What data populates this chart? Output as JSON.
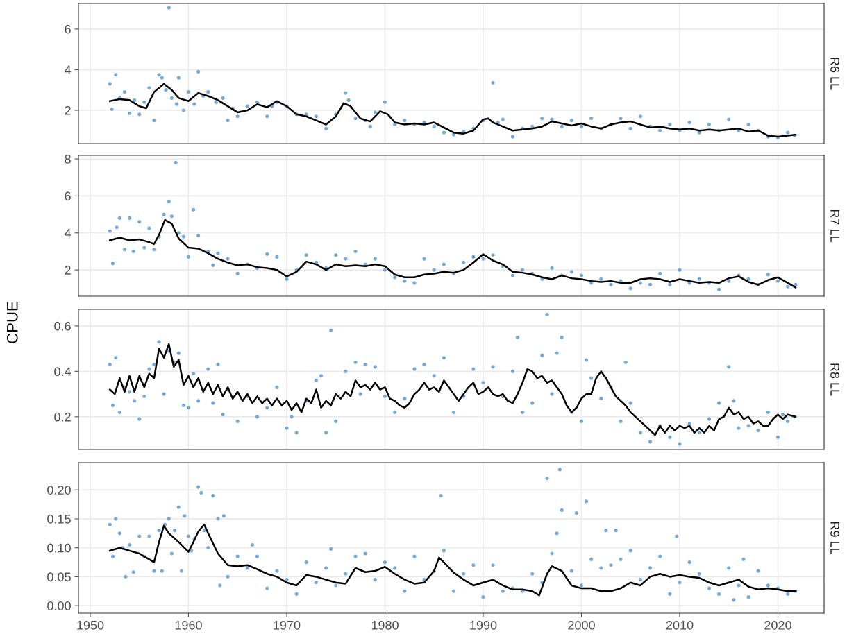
{
  "chart_data": [
    {
      "type": "scatter",
      "annotations": [
        "R6 LL"
      ],
      "xlim": [
        1948.8,
        2024.7
      ],
      "ylim": [
        0.36,
        7.26
      ],
      "xticks": [
        1950,
        1960,
        1970,
        1980,
        1990,
        2000,
        2010,
        2020
      ],
      "yticks": [
        2,
        4,
        6
      ],
      "grid": true,
      "legend": false,
      "tick_labels": "y",
      "series": [
        {
          "marker": "circle",
          "color": "#6aa5d8",
          "x": [
            1952,
            1952.2,
            1952.6,
            1953,
            1953.5,
            1954,
            1954.5,
            1955,
            1955.5,
            1956,
            1956.5,
            1957,
            1957.3,
            1957.7,
            1958,
            1958.3,
            1958.8,
            1959,
            1959.5,
            1960,
            1960.6,
            1961,
            1961.5,
            1962,
            1962.8,
            1963.5,
            1964,
            1964.5,
            1965,
            1966,
            1967,
            1968,
            1968.5,
            1969,
            1970,
            1971,
            1972,
            1973,
            1974,
            1975,
            1976,
            1976.3,
            1977,
            1978,
            1978.5,
            1979,
            1980,
            1981,
            1982,
            1983,
            1984,
            1985,
            1986,
            1987,
            1988,
            1989,
            1990,
            1991,
            1991.5,
            1992,
            1993,
            1994,
            1995,
            1996,
            1997,
            1998,
            1999,
            2000,
            2001,
            2002,
            2003,
            2004,
            2005,
            2006,
            2007,
            2008,
            2009,
            2010,
            2011,
            2012,
            2013,
            2014,
            2015,
            2016,
            2017,
            2018,
            2019,
            2020,
            2021,
            2021.7
          ],
          "values": [
            3.3,
            2.05,
            3.75,
            2.6,
            2.9,
            1.85,
            2.5,
            1.8,
            2.4,
            3.1,
            1.5,
            3.75,
            3.6,
            3.0,
            7.05,
            2.6,
            2.3,
            3.6,
            2.0,
            2.9,
            2.3,
            3.9,
            2.7,
            2.9,
            2.4,
            2.6,
            1.5,
            2.1,
            1.7,
            2.2,
            2.4,
            1.7,
            2.2,
            2.4,
            2.2,
            1.8,
            1.8,
            1.7,
            1.1,
            1.8,
            2.85,
            2.5,
            1.6,
            1.5,
            1.2,
            1.9,
            2.4,
            1.3,
            1.5,
            1.3,
            1.4,
            1.2,
            0.9,
            0.8,
            0.95,
            1.1,
            1.5,
            3.35,
            1.4,
            1.55,
            0.7,
            1.1,
            1.2,
            1.6,
            1.55,
            1.2,
            1.5,
            1.2,
            1.6,
            1.1,
            1.3,
            1.6,
            1.1,
            1.7,
            1.2,
            1.0,
            1.3,
            1.0,
            1.4,
            0.9,
            1.3,
            1.0,
            1.55,
            1.0,
            1.3,
            1.0,
            0.7,
            0.65,
            0.9,
            0.75
          ]
        },
        {
          "type": "line",
          "color": "#000000",
          "x": [
            1952,
            1953,
            1954,
            1955,
            1955.7,
            1956.5,
            1957.5,
            1958.3,
            1959,
            1960,
            1961,
            1962,
            1963,
            1964,
            1965,
            1966,
            1967,
            1968,
            1969,
            1970,
            1971,
            1972,
            1973,
            1974,
            1975,
            1975.8,
            1976.5,
            1977.5,
            1978.5,
            1979.5,
            1980.3,
            1981,
            1982,
            1983,
            1984,
            1985,
            1986,
            1987,
            1988,
            1989,
            1990,
            1990.5,
            1991,
            1992,
            1993,
            1994,
            1995,
            1996,
            1997,
            1998,
            1999,
            2000,
            2001,
            2002,
            2003,
            2004,
            2005,
            2006,
            2007,
            2008,
            2009,
            2010,
            2011,
            2012,
            2013,
            2014,
            2015,
            2016,
            2017,
            2018,
            2019,
            2020,
            2021,
            2021.8
          ],
          "values": [
            2.45,
            2.55,
            2.5,
            2.2,
            2.1,
            2.9,
            3.3,
            3.0,
            2.6,
            2.45,
            2.85,
            2.7,
            2.5,
            2.2,
            1.9,
            2.0,
            2.3,
            2.15,
            2.45,
            2.2,
            1.8,
            1.7,
            1.5,
            1.3,
            1.7,
            2.35,
            2.2,
            1.6,
            1.45,
            1.95,
            1.8,
            1.4,
            1.3,
            1.35,
            1.3,
            1.4,
            1.15,
            0.9,
            0.85,
            1.0,
            1.55,
            1.6,
            1.4,
            1.2,
            1.0,
            1.05,
            1.1,
            1.2,
            1.45,
            1.35,
            1.25,
            1.35,
            1.2,
            1.1,
            1.3,
            1.4,
            1.45,
            1.3,
            1.15,
            1.2,
            1.1,
            1.05,
            1.1,
            1.0,
            1.05,
            1.0,
            1.05,
            1.1,
            0.95,
            1.0,
            0.75,
            0.7,
            0.75,
            0.8
          ]
        }
      ]
    },
    {
      "type": "scatter",
      "annotations": [
        "R7 LL"
      ],
      "xlim": [
        1948.8,
        2024.7
      ],
      "ylim": [
        0.58,
        8.19
      ],
      "xticks": [
        1950,
        1960,
        1970,
        1980,
        1990,
        2000,
        2010,
        2020
      ],
      "yticks": [
        2,
        4,
        6,
        8
      ],
      "grid": true,
      "legend": false,
      "tick_labels": "y",
      "series": [
        {
          "marker": "circle",
          "color": "#6aa5d8",
          "x": [
            1952,
            1952.3,
            1952.7,
            1953,
            1953.5,
            1954,
            1954.4,
            1955,
            1955.5,
            1956,
            1956.5,
            1957,
            1957.5,
            1958,
            1958.3,
            1958.7,
            1959,
            1959.5,
            1960,
            1960.5,
            1961,
            1962,
            1962.5,
            1963,
            1964,
            1965,
            1966,
            1967,
            1968,
            1969,
            1970,
            1971,
            1972,
            1973,
            1974,
            1975,
            1976,
            1977,
            1978,
            1979,
            1980,
            1981,
            1982,
            1983,
            1984,
            1985,
            1986,
            1987,
            1988,
            1989,
            1990,
            1991,
            1992,
            1993,
            1994,
            1995,
            1996,
            1997,
            1998,
            1999,
            2000,
            2001,
            2002,
            2003,
            2004,
            2005,
            2006,
            2007,
            2008,
            2009,
            2010,
            2011,
            2012,
            2013,
            2014,
            2015,
            2016,
            2017,
            2018,
            2019,
            2020,
            2021,
            2021.8
          ],
          "values": [
            4.1,
            2.35,
            4.3,
            4.8,
            3.1,
            4.8,
            3.0,
            4.6,
            3.2,
            4.25,
            3.1,
            3.8,
            5.0,
            5.7,
            4.9,
            7.8,
            4.0,
            3.8,
            2.7,
            5.25,
            3.85,
            3.0,
            2.25,
            2.9,
            2.6,
            1.8,
            2.3,
            2.1,
            2.85,
            2.7,
            1.5,
            2.0,
            2.8,
            2.4,
            2.1,
            2.8,
            2.6,
            3.0,
            2.3,
            2.6,
            2.0,
            1.6,
            1.4,
            1.3,
            2.6,
            2.0,
            2.3,
            1.8,
            2.4,
            2.7,
            2.6,
            2.8,
            2.2,
            1.7,
            2.0,
            1.8,
            1.5,
            2.1,
            1.7,
            1.9,
            1.7,
            1.3,
            1.5,
            1.2,
            1.4,
            1.0,
            1.3,
            1.2,
            1.8,
            1.2,
            2.0,
            1.3,
            1.5,
            1.3,
            0.95,
            1.4,
            1.7,
            1.5,
            1.2,
            1.75,
            1.4,
            1.1,
            1.2
          ]
        },
        {
          "type": "line",
          "color": "#000000",
          "x": [
            1952,
            1953,
            1954,
            1955,
            1956,
            1956.5,
            1957,
            1957.6,
            1958.3,
            1959,
            1960,
            1961,
            1962,
            1963,
            1964,
            1965,
            1966,
            1967,
            1968,
            1969,
            1970,
            1971,
            1972,
            1973,
            1974,
            1975,
            1976,
            1977,
            1978,
            1979,
            1980,
            1981,
            1982,
            1983,
            1984,
            1985,
            1986,
            1987,
            1988,
            1989,
            1990,
            1991,
            1992,
            1993,
            1994,
            1995,
            1996,
            1997,
            1998,
            1999,
            2000,
            2001,
            2002,
            2003,
            2004,
            2005,
            2006,
            2007,
            2008,
            2009,
            2010,
            2011,
            2012,
            2013,
            2014,
            2015,
            2016,
            2017,
            2018,
            2019,
            2020,
            2021,
            2021.8
          ],
          "values": [
            3.6,
            3.75,
            3.6,
            3.65,
            3.5,
            3.4,
            3.9,
            4.7,
            4.5,
            3.7,
            3.2,
            3.15,
            2.9,
            2.6,
            2.4,
            2.25,
            2.3,
            2.15,
            2.1,
            2.0,
            1.65,
            1.9,
            2.45,
            2.3,
            2.0,
            2.3,
            2.2,
            2.25,
            2.2,
            2.3,
            2.2,
            1.75,
            1.6,
            1.6,
            1.75,
            1.8,
            1.9,
            1.85,
            2.0,
            2.4,
            2.85,
            2.5,
            2.3,
            1.9,
            1.85,
            1.75,
            1.6,
            1.5,
            1.7,
            1.55,
            1.5,
            1.4,
            1.35,
            1.4,
            1.3,
            1.3,
            1.5,
            1.55,
            1.5,
            1.35,
            1.5,
            1.4,
            1.3,
            1.35,
            1.3,
            1.55,
            1.65,
            1.35,
            1.2,
            1.45,
            1.6,
            1.3,
            1.05
          ]
        }
      ]
    },
    {
      "type": "scatter",
      "annotations": [
        "R8 LL"
      ],
      "ylabel": "CPUE",
      "xlim": [
        1948.8,
        2024.7
      ],
      "ylim": [
        0.056,
        0.673
      ],
      "xticks": [
        1950,
        1960,
        1970,
        1980,
        1990,
        2000,
        2010,
        2020
      ],
      "yticks": [
        {
          "value": 0.2,
          "label": "0.2"
        },
        {
          "value": 0.4,
          "label": "0.4"
        },
        {
          "value": 0.6,
          "label": "0.6"
        }
      ],
      "grid": true,
      "legend": false,
      "tick_labels": "y",
      "series": [
        {
          "marker": "circle",
          "color": "#6aa5d8",
          "x": [
            1952,
            1952.3,
            1952.6,
            1953,
            1953.5,
            1954,
            1954.5,
            1955,
            1955.5,
            1956,
            1956.5,
            1957,
            1957.5,
            1958,
            1958.5,
            1959,
            1959.5,
            1960,
            1960.5,
            1961,
            1962,
            1962.5,
            1963,
            1963.5,
            1964,
            1965,
            1966,
            1967,
            1968,
            1969,
            1970,
            1970.5,
            1971,
            1972,
            1973,
            1973.5,
            1974,
            1974.5,
            1975,
            1976,
            1977,
            1977.5,
            1978,
            1979,
            1980,
            1981,
            1982,
            1983,
            1984,
            1985,
            1986,
            1987,
            1988,
            1989,
            1990,
            1991,
            1992,
            1993,
            1993.5,
            1994,
            1995,
            1996,
            1996.5,
            1997,
            1997.5,
            1998,
            1999,
            2000,
            2000.5,
            2001,
            2002,
            2003,
            2004,
            2004.5,
            2005,
            2006,
            2007,
            2008,
            2009,
            2010,
            2011,
            2012,
            2013,
            2014,
            2015,
            2015.5,
            2016,
            2017,
            2018,
            2019,
            2020,
            2020.5,
            2021,
            2021.7
          ],
          "values": [
            0.43,
            0.25,
            0.46,
            0.22,
            0.33,
            0.31,
            0.27,
            0.19,
            0.29,
            0.41,
            0.43,
            0.53,
            0.3,
            0.49,
            0.44,
            0.48,
            0.25,
            0.24,
            0.39,
            0.27,
            0.41,
            0.26,
            0.43,
            0.21,
            0.32,
            0.18,
            0.29,
            0.2,
            0.24,
            0.33,
            0.15,
            0.2,
            0.13,
            0.27,
            0.36,
            0.38,
            0.13,
            0.58,
            0.18,
            0.4,
            0.44,
            0.3,
            0.43,
            0.42,
            0.29,
            0.22,
            0.28,
            0.41,
            0.43,
            0.38,
            0.46,
            0.22,
            0.29,
            0.41,
            0.35,
            0.42,
            0.29,
            0.4,
            0.55,
            0.22,
            0.26,
            0.47,
            0.65,
            0.3,
            0.48,
            0.55,
            0.22,
            0.18,
            0.45,
            0.37,
            0.28,
            0.33,
            0.18,
            0.44,
            0.26,
            0.13,
            0.09,
            0.16,
            0.11,
            0.08,
            0.17,
            0.13,
            0.19,
            0.26,
            0.42,
            0.27,
            0.15,
            0.16,
            0.14,
            0.22,
            0.11,
            0.21,
            0.18,
            0.2
          ]
        },
        {
          "type": "line",
          "color": "#000000",
          "x": [
            1952,
            1952.5,
            1953,
            1953.5,
            1954,
            1954.5,
            1955,
            1955.5,
            1956,
            1956.5,
            1957,
            1957.5,
            1958,
            1958.5,
            1959,
            1959.5,
            1960,
            1960.5,
            1961,
            1961.5,
            1962,
            1962.5,
            1963,
            1963.5,
            1964,
            1964.5,
            1965,
            1965.5,
            1966,
            1966.5,
            1967,
            1967.5,
            1968,
            1968.5,
            1969,
            1969.5,
            1970,
            1970.5,
            1971,
            1971.5,
            1972,
            1972.5,
            1973,
            1973.5,
            1974,
            1974.5,
            1975,
            1975.5,
            1976,
            1976.5,
            1977,
            1977.5,
            1978,
            1978.5,
            1979,
            1979.5,
            1980,
            1980.5,
            1981,
            1981.5,
            1982,
            1982.5,
            1983,
            1983.5,
            1984,
            1984.5,
            1985,
            1985.5,
            1986,
            1986.5,
            1987,
            1987.5,
            1988,
            1988.5,
            1989,
            1989.5,
            1990,
            1990.5,
            1991,
            1991.5,
            1992,
            1992.5,
            1993,
            1993.5,
            1994,
            1994.5,
            1995,
            1995.5,
            1996,
            1996.5,
            1997,
            1997.5,
            1998,
            1998.5,
            1999,
            1999.5,
            2000,
            2000.5,
            2001,
            2001.5,
            2002,
            2002.5,
            2003,
            2003.5,
            2004,
            2004.5,
            2005,
            2005.5,
            2006,
            2006.5,
            2007,
            2007.5,
            2008,
            2008.5,
            2009,
            2009.5,
            2010,
            2010.5,
            2011,
            2011.5,
            2012,
            2012.5,
            2013,
            2013.5,
            2014,
            2014.5,
            2015,
            2015.5,
            2016,
            2016.5,
            2017,
            2017.5,
            2018,
            2018.5,
            2019,
            2019.5,
            2020,
            2020.5,
            2021,
            2021.8
          ],
          "values": [
            0.32,
            0.3,
            0.37,
            0.31,
            0.38,
            0.31,
            0.38,
            0.33,
            0.39,
            0.37,
            0.5,
            0.46,
            0.52,
            0.42,
            0.45,
            0.34,
            0.38,
            0.33,
            0.37,
            0.31,
            0.35,
            0.3,
            0.34,
            0.29,
            0.33,
            0.28,
            0.31,
            0.27,
            0.3,
            0.26,
            0.29,
            0.26,
            0.28,
            0.25,
            0.28,
            0.25,
            0.27,
            0.23,
            0.26,
            0.22,
            0.28,
            0.26,
            0.32,
            0.24,
            0.27,
            0.25,
            0.3,
            0.28,
            0.31,
            0.29,
            0.36,
            0.33,
            0.34,
            0.32,
            0.35,
            0.32,
            0.33,
            0.28,
            0.27,
            0.25,
            0.24,
            0.26,
            0.3,
            0.32,
            0.35,
            0.32,
            0.33,
            0.31,
            0.36,
            0.33,
            0.3,
            0.27,
            0.3,
            0.33,
            0.35,
            0.3,
            0.31,
            0.33,
            0.3,
            0.29,
            0.3,
            0.27,
            0.26,
            0.3,
            0.35,
            0.41,
            0.4,
            0.37,
            0.38,
            0.35,
            0.36,
            0.33,
            0.3,
            0.25,
            0.22,
            0.24,
            0.28,
            0.3,
            0.3,
            0.37,
            0.4,
            0.37,
            0.33,
            0.29,
            0.27,
            0.25,
            0.22,
            0.2,
            0.18,
            0.16,
            0.14,
            0.12,
            0.16,
            0.13,
            0.16,
            0.14,
            0.16,
            0.15,
            0.16,
            0.13,
            0.15,
            0.13,
            0.16,
            0.14,
            0.19,
            0.2,
            0.24,
            0.21,
            0.22,
            0.19,
            0.2,
            0.17,
            0.18,
            0.16,
            0.16,
            0.19,
            0.21,
            0.19,
            0.21,
            0.2
          ]
        }
      ]
    },
    {
      "type": "scatter",
      "annotations": [
        "R9 LL"
      ],
      "xlim": [
        1948.8,
        2024.7
      ],
      "ylim": [
        -0.013,
        0.247
      ],
      "xticks": [
        1950,
        1960,
        1970,
        1980,
        1990,
        2000,
        2010,
        2020
      ],
      "yticks": [
        {
          "value": 0,
          "label": "0.00"
        },
        {
          "value": 0.05,
          "label": "0.05"
        },
        {
          "value": 0.1,
          "label": "0.10"
        },
        {
          "value": 0.15,
          "label": "0.15"
        },
        {
          "value": 0.2,
          "label": "0.20"
        }
      ],
      "grid": true,
      "legend": false,
      "series": [
        {
          "marker": "circle",
          "color": "#6aa5d8",
          "x": [
            1952,
            1952.3,
            1952.6,
            1953,
            1953.3,
            1953.6,
            1954,
            1954.4,
            1955,
            1955.5,
            1956,
            1956.5,
            1957,
            1957.3,
            1957.6,
            1958,
            1958.3,
            1958.6,
            1959,
            1959.3,
            1959.6,
            1960,
            1960.3,
            1960.6,
            1961,
            1961.3,
            1961.6,
            1962,
            1962.5,
            1963,
            1963.2,
            1963.6,
            1964,
            1965,
            1966,
            1966.5,
            1967,
            1968,
            1969,
            1970,
            1971,
            1972,
            1973,
            1974,
            1974.5,
            1975,
            1976,
            1977,
            1978,
            1979,
            1980,
            1981,
            1982,
            1983,
            1984,
            1985,
            1985.7,
            1986,
            1987,
            1988,
            1989,
            1990,
            1991,
            1992,
            1993,
            1994,
            1995,
            1996,
            1996.5,
            1997,
            1997.5,
            1997.8,
            1998,
            1999,
            1999.5,
            2000,
            2000.5,
            2001,
            2002,
            2002.5,
            2003,
            2003.5,
            2004,
            2005,
            2006,
            2007,
            2008,
            2009,
            2009.7,
            2010,
            2011,
            2012,
            2013,
            2014,
            2015,
            2015.5,
            2016,
            2016.5,
            2017,
            2018,
            2019,
            2020,
            2021,
            2021.8
          ],
          "values": [
            0.14,
            0.085,
            0.15,
            0.125,
            0.1,
            0.05,
            0.105,
            0.058,
            0.12,
            0.085,
            0.12,
            0.06,
            0.13,
            0.06,
            0.14,
            0.15,
            0.09,
            0.13,
            0.17,
            0.06,
            0.155,
            0.12,
            0.095,
            0.115,
            0.205,
            0.195,
            0.13,
            0.1,
            0.19,
            0.15,
            0.035,
            0.155,
            0.05,
            0.085,
            0.065,
            0.105,
            0.085,
            0.03,
            0.06,
            0.045,
            0.02,
            0.075,
            0.04,
            0.065,
            0.098,
            0.035,
            0.055,
            0.085,
            0.09,
            0.045,
            0.075,
            0.065,
            0.025,
            0.085,
            0.045,
            0.06,
            0.19,
            0.095,
            0.025,
            0.055,
            0.07,
            0.015,
            0.07,
            0.025,
            0.03,
            0.025,
            0.055,
            0.04,
            0.22,
            0.09,
            0.125,
            0.235,
            0.165,
            0.06,
            0.16,
            0.035,
            0.18,
            0.08,
            0.065,
            0.13,
            0.07,
            0.13,
            0.08,
            0.095,
            0.045,
            0.065,
            0.085,
            0.02,
            0.12,
            0.04,
            0.075,
            0.055,
            0.03,
            0.02,
            0.065,
            0.01,
            0.035,
            0.08,
            0.015,
            0.06,
            0.035,
            0.03,
            0.02,
            0.025
          ]
        },
        {
          "type": "line",
          "color": "#000000",
          "x": [
            1952,
            1953,
            1954,
            1955,
            1956,
            1956.5,
            1957,
            1957.5,
            1958,
            1959,
            1960,
            1960.5,
            1961,
            1961.6,
            1962,
            1963,
            1964,
            1965,
            1966,
            1967,
            1968,
            1969,
            1970,
            1971,
            1972,
            1973,
            1974,
            1975,
            1976,
            1977,
            1978,
            1979,
            1980,
            1981,
            1982,
            1983,
            1984,
            1985,
            1985.5,
            1986,
            1987,
            1988,
            1989,
            1990,
            1991,
            1992,
            1993,
            1994,
            1995,
            1995.7,
            1996.5,
            1997,
            1998,
            1999,
            2000,
            2001,
            2002,
            2003,
            2004,
            2005,
            2006,
            2007,
            2008,
            2009,
            2010,
            2011,
            2012,
            2013,
            2014,
            2015,
            2016,
            2017,
            2018,
            2019,
            2020,
            2021,
            2021.8
          ],
          "values": [
            0.095,
            0.1,
            0.095,
            0.09,
            0.08,
            0.075,
            0.11,
            0.138,
            0.125,
            0.11,
            0.093,
            0.11,
            0.128,
            0.14,
            0.125,
            0.09,
            0.07,
            0.068,
            0.07,
            0.063,
            0.055,
            0.05,
            0.04,
            0.035,
            0.053,
            0.05,
            0.045,
            0.04,
            0.038,
            0.065,
            0.058,
            0.06,
            0.067,
            0.055,
            0.045,
            0.038,
            0.04,
            0.06,
            0.083,
            0.075,
            0.057,
            0.045,
            0.035,
            0.04,
            0.045,
            0.035,
            0.028,
            0.028,
            0.025,
            0.018,
            0.055,
            0.068,
            0.06,
            0.035,
            0.03,
            0.03,
            0.025,
            0.025,
            0.03,
            0.04,
            0.035,
            0.05,
            0.055,
            0.05,
            0.053,
            0.05,
            0.048,
            0.04,
            0.035,
            0.04,
            0.045,
            0.033,
            0.028,
            0.03,
            0.028,
            0.025,
            0.025
          ]
        }
      ]
    }
  ]
}
